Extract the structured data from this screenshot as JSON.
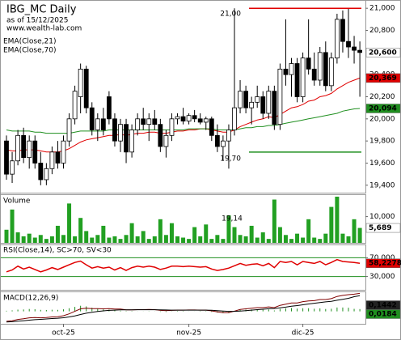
{
  "chart_data": {
    "type": "candlestick",
    "title": "IBG_MC Daily",
    "subtitle": "as of 15/12/2025",
    "source": "www.wealth-lab.com",
    "categories": [
      null,
      null,
      null,
      null,
      null,
      null,
      null,
      null,
      null,
      null,
      "oct-25",
      null,
      null,
      null,
      null,
      null,
      null,
      null,
      null,
      null,
      null,
      null,
      null,
      null,
      null,
      null,
      null,
      null,
      null,
      null,
      null,
      null,
      "nov-25",
      null,
      null,
      null,
      null,
      null,
      null,
      null,
      null,
      null,
      null,
      null,
      null,
      null,
      null,
      null,
      null,
      null,
      null,
      null,
      "dic-25",
      null,
      null,
      null,
      null,
      null,
      null,
      null,
      null,
      null,
      null
    ],
    "ohlc": [
      [
        19.8,
        19.85,
        19.45,
        19.5
      ],
      [
        19.5,
        19.7,
        19.42,
        19.62
      ],
      [
        19.62,
        19.9,
        19.58,
        19.85
      ],
      [
        19.85,
        19.92,
        19.6,
        19.65
      ],
      [
        19.65,
        19.85,
        19.55,
        19.8
      ],
      [
        19.8,
        19.85,
        19.55,
        19.6
      ],
      [
        19.6,
        19.7,
        19.4,
        19.45
      ],
      [
        19.45,
        19.6,
        19.4,
        19.55
      ],
      [
        19.55,
        19.75,
        19.5,
        19.7
      ],
      [
        19.7,
        19.8,
        19.55,
        19.6
      ],
      [
        19.6,
        19.85,
        19.55,
        19.8
      ],
      [
        19.8,
        20.05,
        19.75,
        20.0
      ],
      [
        20.0,
        20.3,
        19.95,
        20.25
      ],
      [
        20.2,
        20.5,
        20.05,
        20.45
      ],
      [
        20.45,
        20.48,
        20.05,
        20.1
      ],
      [
        20.1,
        20.15,
        19.85,
        19.9
      ],
      [
        19.9,
        20.05,
        19.8,
        20.0
      ],
      [
        20.0,
        20.1,
        19.85,
        19.9
      ],
      [
        20.2,
        20.25,
        19.95,
        20.0
      ],
      [
        20.0,
        20.05,
        19.75,
        19.8
      ],
      [
        19.8,
        20.0,
        19.7,
        19.95
      ],
      [
        19.95,
        20.0,
        19.6,
        19.7
      ],
      [
        19.7,
        19.95,
        19.65,
        19.9
      ],
      [
        19.9,
        20.05,
        19.85,
        20.0
      ],
      [
        20.0,
        20.1,
        19.9,
        19.95
      ],
      [
        19.95,
        20.05,
        19.8,
        20.0
      ],
      [
        20.0,
        20.08,
        19.9,
        19.95
      ],
      [
        19.95,
        20.0,
        19.7,
        19.75
      ],
      [
        19.75,
        19.9,
        19.65,
        19.85
      ],
      [
        19.85,
        20.05,
        19.8,
        20.0
      ],
      [
        20.0,
        20.05,
        19.95,
        20.02
      ],
      [
        20.02,
        20.1,
        19.95,
        19.98
      ],
      [
        19.98,
        20.05,
        19.95,
        20.03
      ],
      [
        20.03,
        20.08,
        19.97,
        20.0
      ],
      [
        20.0,
        20.05,
        19.95,
        19.97
      ],
      [
        19.97,
        20.02,
        19.9,
        20.0
      ],
      [
        20.0,
        20.02,
        19.8,
        19.85
      ],
      [
        19.85,
        19.95,
        19.7,
        19.75
      ],
      [
        19.75,
        19.85,
        19.62,
        19.8
      ],
      [
        19.8,
        19.95,
        19.55,
        19.9
      ],
      [
        19.9,
        21.0,
        19.85,
        20.1
      ],
      [
        20.1,
        20.35,
        20.05,
        20.25
      ],
      [
        20.25,
        20.3,
        20.05,
        20.1
      ],
      [
        20.1,
        20.2,
        19.95,
        20.15
      ],
      [
        20.15,
        20.3,
        20.1,
        20.2
      ],
      [
        20.2,
        20.25,
        20.0,
        20.05
      ],
      [
        20.05,
        20.3,
        20.0,
        20.25
      ],
      [
        20.25,
        20.3,
        19.9,
        19.95
      ],
      [
        19.95,
        20.5,
        19.9,
        20.45
      ],
      [
        20.45,
        20.9,
        20.3,
        20.4
      ],
      [
        20.4,
        20.55,
        20.2,
        20.5
      ],
      [
        20.5,
        20.55,
        20.15,
        20.2
      ],
      [
        20.2,
        20.6,
        20.15,
        20.55
      ],
      [
        20.55,
        20.9,
        20.4,
        20.45
      ],
      [
        20.45,
        20.6,
        20.3,
        20.35
      ],
      [
        20.35,
        20.65,
        20.3,
        20.6
      ],
      [
        20.6,
        20.7,
        20.25,
        20.3
      ],
      [
        20.3,
        20.6,
        20.25,
        20.55
      ],
      [
        20.55,
        20.95,
        20.5,
        20.9
      ],
      [
        20.9,
        20.98,
        20.6,
        20.7
      ],
      [
        20.7,
        21.0,
        20.55,
        20.65
      ],
      [
        20.65,
        20.75,
        20.5,
        20.62
      ],
      [
        20.62,
        20.7,
        20.2,
        20.6
      ]
    ],
    "up_color": "#ffffff",
    "down_color": "#000000",
    "last_label": "20,600",
    "ylim": [
      19.34,
      21.06
    ],
    "yticks": [
      {
        "value": 21,
        "label": "21,000"
      },
      {
        "value": 20.8,
        "label": "20,800"
      },
      {
        "value": 20.4,
        "label": "20,400"
      },
      {
        "value": 20.2,
        "label": "20,200"
      },
      {
        "value": 20,
        "label": "20,000"
      },
      {
        "value": 19.8,
        "label": "19,800"
      },
      {
        "value": 19.6,
        "label": "19,600"
      },
      {
        "value": 19.4,
        "label": "19,400"
      }
    ],
    "series": [
      {
        "name": "EMA(Close,21)",
        "color": "#e00000",
        "last_label": "20,369",
        "values": [
          19.72,
          19.71,
          19.71,
          19.72,
          19.72,
          19.72,
          19.71,
          19.7,
          19.7,
          19.7,
          19.71,
          19.73,
          19.76,
          19.79,
          19.81,
          19.82,
          19.83,
          19.84,
          19.85,
          19.85,
          19.86,
          19.85,
          19.86,
          19.87,
          19.87,
          19.88,
          19.88,
          19.87,
          19.87,
          19.88,
          19.89,
          19.89,
          19.9,
          19.9,
          19.91,
          19.91,
          19.9,
          19.89,
          19.88,
          19.88,
          19.9,
          19.93,
          19.95,
          19.97,
          19.99,
          20.0,
          20.02,
          20.01,
          20.04,
          20.07,
          20.1,
          20.11,
          20.13,
          20.16,
          20.17,
          20.2,
          20.21,
          20.23,
          20.27,
          20.3,
          20.33,
          20.35,
          20.369
        ]
      },
      {
        "name": "EMA(Close,70)",
        "color": "#1f8f1f",
        "last_label": "20,094",
        "values": [
          19.9,
          19.89,
          19.89,
          19.89,
          19.89,
          19.88,
          19.88,
          19.87,
          19.87,
          19.87,
          19.87,
          19.87,
          19.88,
          19.89,
          19.89,
          19.89,
          19.89,
          19.89,
          19.9,
          19.9,
          19.9,
          19.9,
          19.9,
          19.9,
          19.9,
          19.9,
          19.9,
          19.9,
          19.9,
          19.9,
          19.9,
          19.9,
          19.91,
          19.91,
          19.91,
          19.91,
          19.91,
          19.9,
          19.9,
          19.9,
          19.9,
          19.91,
          19.92,
          19.92,
          19.93,
          19.93,
          19.94,
          19.94,
          19.95,
          19.96,
          19.97,
          19.98,
          19.99,
          20.0,
          20.01,
          20.02,
          20.03,
          20.04,
          20.05,
          20.07,
          20.08,
          20.09,
          20.094
        ]
      }
    ],
    "levels": [
      {
        "value": 21,
        "label": "21,00",
        "color": "#e00000"
      },
      {
        "value": 19.7,
        "label": "19,70",
        "color": "#1f8f1f"
      }
    ],
    "volume": {
      "type": "bar",
      "title": "Volume",
      "color": "#22a022",
      "annotation": "19,14",
      "last_label": "5,689",
      "ylim": [
        0,
        18200
      ],
      "yticks": [
        {
          "value": 10000,
          "label": "10,000"
        }
      ],
      "values": [
        5000,
        12700,
        4000,
        2500,
        3500,
        2000,
        3000,
        1500,
        2500,
        6500,
        3000,
        15000,
        2500,
        9500,
        4500,
        2000,
        3000,
        6500,
        2000,
        2500,
        1500,
        3000,
        7500,
        2500,
        4500,
        1500,
        2500,
        9000,
        3000,
        7500,
        2500,
        2000,
        1500,
        6000,
        2500,
        7000,
        1500,
        3000,
        1500,
        10500,
        6000,
        3000,
        2500,
        6500,
        2000,
        4000,
        1500,
        16500,
        6000,
        3000,
        1500,
        3500,
        2000,
        9000,
        2000,
        1500,
        3500,
        13700,
        17600,
        3500,
        2500,
        9000,
        5689
      ]
    },
    "rsi": {
      "type": "line",
      "title": "RSI(Close,14), SC>70, SV<30",
      "color": "#e00000",
      "band_color": "#1f8f1f",
      "last_label": "58,2278",
      "ylim": [
        0,
        100
      ],
      "yticks": [
        {
          "value": 70,
          "label": "70,000"
        },
        {
          "value": 30,
          "label": "30,000"
        }
      ],
      "values": [
        40,
        44,
        52,
        46,
        50,
        45,
        40,
        44,
        49,
        45,
        50,
        55,
        60,
        63,
        55,
        48,
        51,
        48,
        50,
        44,
        49,
        43,
        49,
        52,
        50,
        52,
        50,
        45,
        48,
        52,
        52,
        51,
        52,
        51,
        50,
        51,
        46,
        43,
        45,
        48,
        53,
        58,
        54,
        56,
        57,
        53,
        58,
        49,
        62,
        60,
        62,
        55,
        62,
        60,
        58,
        62,
        55,
        60,
        66,
        62,
        61,
        60,
        58.2278
      ]
    },
    "macd": {
      "type": "line",
      "title": "MACD(12,26,9)",
      "ylim": [
        -0.1,
        0.16
      ],
      "series": [
        {
          "color": "#800000",
          "last_label": "0,1442",
          "values": [
            -0.08,
            -0.075,
            -0.065,
            -0.06,
            -0.052,
            -0.05,
            -0.052,
            -0.05,
            -0.045,
            -0.043,
            -0.035,
            -0.02,
            0.0,
            0.02,
            0.025,
            0.022,
            0.022,
            0.02,
            0.022,
            0.018,
            0.018,
            0.012,
            0.012,
            0.014,
            0.014,
            0.015,
            0.014,
            0.008,
            0.006,
            0.008,
            0.01,
            0.01,
            0.011,
            0.011,
            0.01,
            0.01,
            0.004,
            -0.004,
            -0.01,
            -0.01,
            0.002,
            0.015,
            0.02,
            0.025,
            0.03,
            0.03,
            0.036,
            0.03,
            0.048,
            0.058,
            0.068,
            0.068,
            0.078,
            0.084,
            0.086,
            0.095,
            0.095,
            0.102,
            0.12,
            0.128,
            0.134,
            0.138,
            0.1442
          ]
        },
        {
          "color": "#000000",
          "values": [
            -0.085,
            -0.083,
            -0.079,
            -0.075,
            -0.071,
            -0.067,
            -0.064,
            -0.061,
            -0.058,
            -0.055,
            -0.051,
            -0.045,
            -0.036,
            -0.025,
            -0.015,
            -0.007,
            -0.001,
            0.004,
            0.008,
            0.01,
            0.012,
            0.012,
            0.012,
            0.013,
            0.013,
            0.013,
            0.013,
            0.012,
            0.011,
            0.01,
            0.01,
            0.01,
            0.01,
            0.01,
            0.01,
            0.01,
            0.009,
            0.006,
            0.003,
            0.0,
            0.0,
            0.003,
            0.006,
            0.01,
            0.014,
            0.017,
            0.021,
            0.023,
            0.028,
            0.034,
            0.041,
            0.046,
            0.053,
            0.059,
            0.065,
            0.071,
            0.076,
            0.081,
            0.089,
            0.097,
            0.105,
            0.118,
            0.1258
          ]
        }
      ],
      "hist": {
        "color": "#1f8f1f",
        "last_label": "0,0184",
        "values": [
          0.005,
          0.008,
          0.014,
          0.015,
          0.019,
          0.017,
          0.012,
          0.011,
          0.013,
          0.012,
          0.016,
          0.025,
          0.036,
          0.045,
          0.04,
          0.029,
          0.023,
          0.016,
          0.014,
          0.008,
          0.006,
          0.0,
          0.0,
          0.001,
          0.001,
          0.002,
          0.001,
          -0.004,
          -0.005,
          -0.002,
          0.0,
          0.0,
          0.001,
          0.001,
          0.0,
          0.0,
          -0.005,
          -0.01,
          -0.013,
          -0.01,
          0.002,
          0.012,
          0.014,
          0.015,
          0.016,
          0.013,
          0.015,
          0.007,
          0.02,
          0.024,
          0.027,
          0.022,
          0.025,
          0.025,
          0.021,
          0.024,
          0.019,
          0.021,
          0.031,
          0.031,
          0.029,
          0.02,
          0.0184
        ]
      }
    }
  }
}
